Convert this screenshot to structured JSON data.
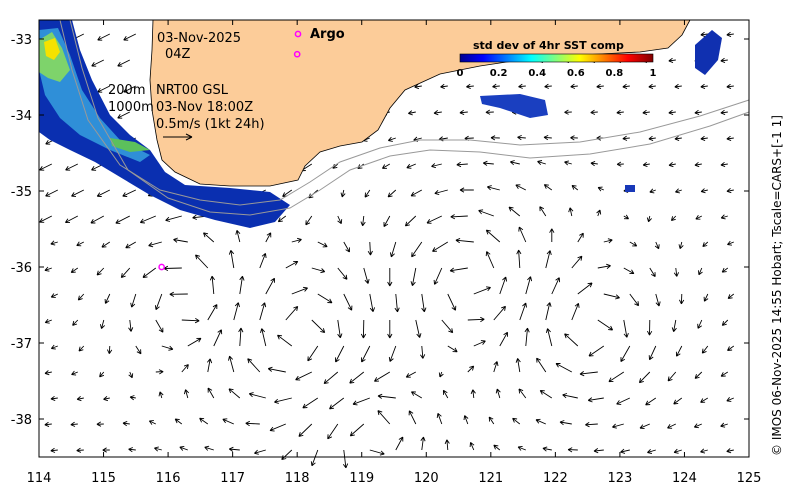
{
  "map": {
    "date": "03-Nov-2025",
    "time": "04Z",
    "contour_shallow": "200m",
    "contour_deep": "1000m",
    "velocity_source": "NRT00 GSL",
    "velocity_time": "03-Nov 18:00Z",
    "scale_label": "0.5m/s (1kt 24h)",
    "argo_label": "Argo",
    "credit": "© IMOS 06-Nov-2025 14:55 Hobart; Tscale=CARS+[-1 1]",
    "x_ticks": [
      "114",
      "115",
      "116",
      "117",
      "118",
      "119",
      "120",
      "121",
      "122",
      "123",
      "124",
      "125"
    ],
    "y_ticks": [
      "-33",
      "-34",
      "-35",
      "-36",
      "-37",
      "-38"
    ]
  },
  "colorbar": {
    "title": "std dev of 4hr SST comp",
    "ticks": [
      "0",
      "0.2",
      "0.4",
      "0.6",
      "0.8",
      "1"
    ]
  },
  "colors": {
    "land": "#fccc99",
    "argo": "#ff00ff",
    "contour": "#999999"
  },
  "argo_floats": [
    {
      "lon": 118.0,
      "lat": -33.2
    },
    {
      "lon": 115.9,
      "lat": -36.0
    }
  ]
}
